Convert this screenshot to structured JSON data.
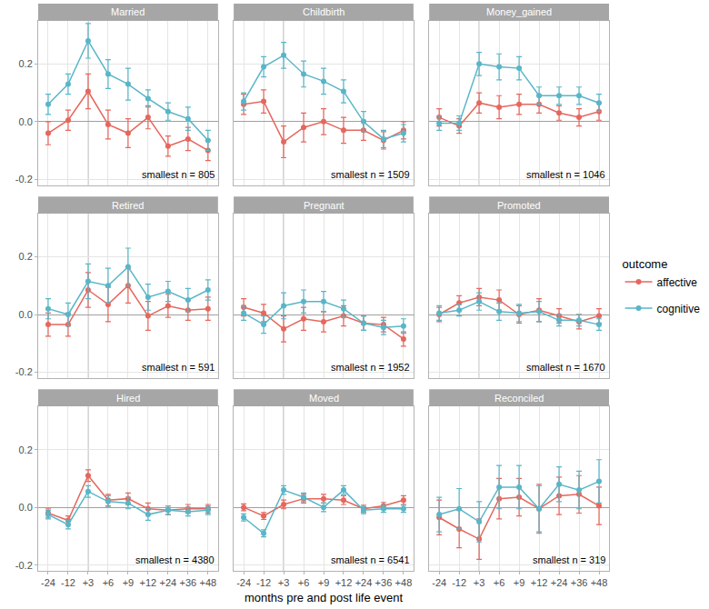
{
  "x_label": "months pre and post life event",
  "legend_title": "outcome",
  "legend": "right",
  "event_category": "+3",
  "chart_data": [
    {
      "type": "line",
      "title": "Married",
      "tick_labels": "y",
      "grid": true,
      "marker": "circle",
      "categories": [
        "-24",
        "-12",
        "+3",
        "+6",
        "+9",
        "+12",
        "+24",
        "+36",
        "+48"
      ],
      "ylim": [
        -0.22,
        0.35
      ],
      "yticks": [
        -0.2,
        {
          "value": 0,
          "label": "0.0"
        },
        0.2
      ],
      "annotations": [
        "smallest n = 805"
      ],
      "series": [
        {
          "name": "affective",
          "color": "#E5675D",
          "values": [
            -0.04,
            0.005,
            0.105,
            -0.01,
            -0.04,
            0.015,
            -0.085,
            -0.06,
            -0.1
          ],
          "error": [
            0.04,
            0.035,
            0.06,
            0.05,
            0.05,
            0.04,
            0.035,
            0.04,
            0.035
          ]
        },
        {
          "name": "cognitive",
          "color": "#58B6C8",
          "values": [
            0.06,
            0.13,
            0.28,
            0.165,
            0.13,
            0.08,
            0.035,
            0.01,
            -0.065
          ],
          "error": [
            0.035,
            0.035,
            0.06,
            0.05,
            0.055,
            0.03,
            0.03,
            0.04,
            0.035
          ]
        }
      ]
    },
    {
      "type": "line",
      "title": "Childbirth",
      "tick_labels": false,
      "grid": true,
      "marker": "circle",
      "categories": [
        "-24",
        "-12",
        "+3",
        "+6",
        "+9",
        "+12",
        "+24",
        "+36",
        "+48"
      ],
      "ylim": [
        -0.22,
        0.35
      ],
      "yticks": [
        -0.2,
        {
          "value": 0,
          "label": "0.0"
        },
        0.2
      ],
      "annotations": [
        "smallest n = 1509"
      ],
      "series": [
        {
          "name": "affective",
          "color": "#E5675D",
          "values": [
            0.06,
            0.07,
            -0.07,
            -0.02,
            0.0,
            -0.03,
            -0.03,
            -0.065,
            -0.03
          ],
          "error": [
            0.035,
            0.04,
            0.055,
            0.05,
            0.045,
            0.045,
            0.035,
            0.03,
            0.03
          ]
        },
        {
          "name": "cognitive",
          "color": "#58B6C8",
          "values": [
            0.07,
            0.19,
            0.23,
            0.165,
            0.14,
            0.105,
            0.0,
            -0.06,
            -0.04
          ],
          "error": [
            0.03,
            0.035,
            0.045,
            0.045,
            0.045,
            0.04,
            0.035,
            0.03,
            0.03
          ]
        }
      ]
    },
    {
      "type": "line",
      "title": "Money_gained",
      "tick_labels": false,
      "grid": true,
      "marker": "circle",
      "categories": [
        "-24",
        "-12",
        "+3",
        "+6",
        "+9",
        "+12",
        "+24",
        "+36",
        "+48"
      ],
      "ylim": [
        -0.22,
        0.35
      ],
      "yticks": [
        -0.2,
        {
          "value": 0,
          "label": "0.0"
        },
        0.2
      ],
      "annotations": [
        "smallest n = 1046"
      ],
      "series": [
        {
          "name": "affective",
          "color": "#E5675D",
          "values": [
            0.015,
            -0.015,
            0.065,
            0.05,
            0.06,
            0.06,
            0.03,
            0.015,
            0.035
          ],
          "error": [
            0.03,
            0.025,
            0.035,
            0.04,
            0.035,
            0.03,
            0.025,
            0.03,
            0.03
          ]
        },
        {
          "name": "cognitive",
          "color": "#58B6C8",
          "values": [
            -0.005,
            -0.005,
            0.2,
            0.19,
            0.185,
            0.09,
            0.09,
            0.09,
            0.065
          ],
          "error": [
            0.025,
            0.025,
            0.04,
            0.045,
            0.04,
            0.03,
            0.03,
            0.03,
            0.03
          ]
        }
      ]
    },
    {
      "type": "line",
      "title": "Retired",
      "tick_labels": "y",
      "grid": true,
      "marker": "circle",
      "categories": [
        "-24",
        "-12",
        "+3",
        "+6",
        "+9",
        "+12",
        "+24",
        "+36",
        "+48"
      ],
      "ylim": [
        -0.22,
        0.35
      ],
      "yticks": [
        -0.2,
        {
          "value": 0,
          "label": "0.0"
        },
        0.2
      ],
      "annotations": [
        "smallest n = 591"
      ],
      "series": [
        {
          "name": "affective",
          "color": "#E5675D",
          "values": [
            -0.035,
            -0.035,
            0.085,
            0.035,
            0.1,
            -0.005,
            0.03,
            0.015,
            0.02
          ],
          "error": [
            0.04,
            0.04,
            0.06,
            0.06,
            0.06,
            0.05,
            0.04,
            0.035,
            0.04
          ]
        },
        {
          "name": "cognitive",
          "color": "#58B6C8",
          "values": [
            0.02,
            0.0,
            0.115,
            0.1,
            0.165,
            0.06,
            0.08,
            0.05,
            0.085
          ],
          "error": [
            0.035,
            0.04,
            0.06,
            0.06,
            0.065,
            0.045,
            0.035,
            0.04,
            0.035
          ]
        }
      ]
    },
    {
      "type": "line",
      "title": "Pregnant",
      "tick_labels": false,
      "grid": true,
      "marker": "circle",
      "categories": [
        "-24",
        "-12",
        "+3",
        "+6",
        "+9",
        "+12",
        "+24",
        "+36",
        "+48"
      ],
      "ylim": [
        -0.22,
        0.35
      ],
      "yticks": [
        -0.2,
        {
          "value": 0,
          "label": "0.0"
        },
        0.2
      ],
      "annotations": [
        "smallest n = 1952"
      ],
      "series": [
        {
          "name": "affective",
          "color": "#E5675D",
          "values": [
            0.025,
            0.005,
            -0.05,
            -0.015,
            -0.025,
            -0.005,
            -0.03,
            -0.035,
            -0.085
          ],
          "error": [
            0.03,
            0.03,
            0.045,
            0.04,
            0.035,
            0.035,
            0.025,
            0.025,
            0.025
          ]
        },
        {
          "name": "cognitive",
          "color": "#58B6C8",
          "values": [
            0.005,
            -0.035,
            0.03,
            0.045,
            0.045,
            0.02,
            -0.03,
            -0.045,
            -0.04
          ],
          "error": [
            0.025,
            0.03,
            0.045,
            0.04,
            0.035,
            0.03,
            0.025,
            0.025,
            0.025
          ]
        }
      ]
    },
    {
      "type": "line",
      "title": "Promoted",
      "tick_labels": false,
      "grid": true,
      "marker": "circle",
      "categories": [
        "-24",
        "-12",
        "+3",
        "+6",
        "+9",
        "+12",
        "+24",
        "+36",
        "+48"
      ],
      "ylim": [
        -0.22,
        0.35
      ],
      "yticks": [
        -0.2,
        {
          "value": 0,
          "label": "0.0"
        },
        0.2
      ],
      "annotations": [
        "smallest n = 1670"
      ],
      "series": [
        {
          "name": "affective",
          "color": "#E5675D",
          "values": [
            0.0,
            0.04,
            0.06,
            0.05,
            0.0,
            0.015,
            -0.005,
            -0.025,
            -0.005
          ],
          "error": [
            0.025,
            0.025,
            0.03,
            0.035,
            0.03,
            0.04,
            0.025,
            0.025,
            0.025
          ]
        },
        {
          "name": "cognitive",
          "color": "#58B6C8",
          "values": [
            0.005,
            0.015,
            0.045,
            0.01,
            0.005,
            0.01,
            -0.02,
            -0.02,
            -0.035
          ],
          "error": [
            0.025,
            0.02,
            0.03,
            0.03,
            0.03,
            0.035,
            0.02,
            0.02,
            0.02
          ]
        }
      ]
    },
    {
      "type": "line",
      "title": "Hired",
      "tick_labels": true,
      "grid": true,
      "marker": "circle",
      "categories": [
        "-24",
        "-12",
        "+3",
        "+6",
        "+9",
        "+12",
        "+24",
        "+36",
        "+48"
      ],
      "ylim": [
        -0.22,
        0.35
      ],
      "yticks": [
        -0.2,
        {
          "value": 0,
          "label": "0.0"
        },
        0.2
      ],
      "annotations": [
        "smallest n = 4380"
      ],
      "series": [
        {
          "name": "affective",
          "color": "#E5675D",
          "values": [
            -0.02,
            -0.045,
            0.11,
            0.025,
            0.03,
            -0.005,
            -0.01,
            -0.005,
            -0.005
          ],
          "error": [
            0.015,
            0.015,
            0.02,
            0.02,
            0.02,
            0.02,
            0.015,
            0.015,
            0.015
          ]
        },
        {
          "name": "cognitive",
          "color": "#58B6C8",
          "values": [
            -0.025,
            -0.06,
            0.055,
            0.02,
            0.015,
            -0.025,
            -0.01,
            -0.015,
            -0.01
          ],
          "error": [
            0.015,
            0.015,
            0.02,
            0.02,
            0.02,
            0.02,
            0.015,
            0.015,
            0.015
          ]
        }
      ]
    },
    {
      "type": "line",
      "title": "Moved",
      "tick_labels": "x",
      "grid": true,
      "marker": "circle",
      "categories": [
        "-24",
        "-12",
        "+3",
        "+6",
        "+9",
        "+12",
        "+24",
        "+36",
        "+48"
      ],
      "ylim": [
        -0.22,
        0.35
      ],
      "yticks": [
        -0.2,
        {
          "value": 0,
          "label": "0.0"
        },
        0.2
      ],
      "annotations": [
        "smallest n = 6541"
      ],
      "series": [
        {
          "name": "affective",
          "color": "#E5675D",
          "values": [
            0.0,
            -0.03,
            0.01,
            0.03,
            0.03,
            0.025,
            -0.005,
            0.005,
            0.025
          ],
          "error": [
            0.012,
            0.012,
            0.015,
            0.015,
            0.015,
            0.015,
            0.012,
            0.012,
            0.015
          ]
        },
        {
          "name": "cognitive",
          "color": "#58B6C8",
          "values": [
            -0.035,
            -0.09,
            0.06,
            0.035,
            0.0,
            0.06,
            -0.01,
            -0.005,
            -0.005
          ],
          "error": [
            0.012,
            0.012,
            0.015,
            0.015,
            0.015,
            0.015,
            0.012,
            0.012,
            0.012
          ]
        }
      ]
    },
    {
      "type": "line",
      "title": "Reconciled",
      "tick_labels": "x",
      "grid": true,
      "marker": "circle",
      "categories": [
        "-24",
        "-12",
        "+3",
        "+6",
        "+9",
        "+12",
        "+24",
        "+36",
        "+48"
      ],
      "ylim": [
        -0.22,
        0.35
      ],
      "yticks": [
        -0.2,
        {
          "value": 0,
          "label": "0.0"
        },
        0.2
      ],
      "annotations": [
        "smallest n = 319"
      ],
      "series": [
        {
          "name": "affective",
          "color": "#E5675D",
          "values": [
            -0.035,
            -0.075,
            -0.11,
            0.03,
            0.035,
            -0.005,
            0.04,
            0.045,
            0.005
          ],
          "error": [
            0.06,
            0.065,
            0.07,
            0.07,
            0.065,
            0.085,
            0.065,
            0.065,
            0.065
          ]
        },
        {
          "name": "cognitive",
          "color": "#58B6C8",
          "values": [
            -0.025,
            -0.005,
            -0.05,
            0.07,
            0.07,
            -0.005,
            0.08,
            0.06,
            0.09
          ],
          "error": [
            0.06,
            0.07,
            0.07,
            0.075,
            0.075,
            0.08,
            0.06,
            0.065,
            0.075
          ]
        }
      ]
    }
  ]
}
